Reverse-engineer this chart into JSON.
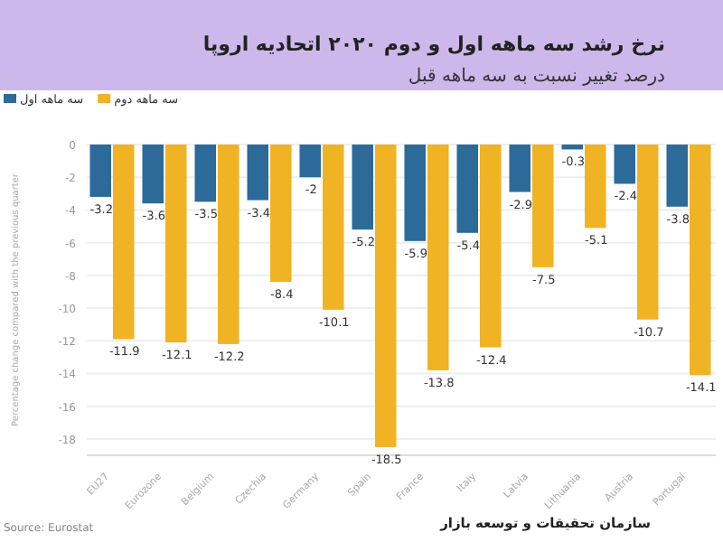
{
  "chart_data": {
    "type": "bar",
    "title": "نرخ رشد سه ماهه اول و دوم ۲۰۲۰ اتحادیه اروپا",
    "subtitle": "درصد تغییر نسبت به سه ماهه قبل",
    "ylabel": "Percentage change compared with the previous quarter",
    "categories": [
      "EU27",
      "Eurozone",
      "Belgium",
      "Czechia",
      "Germany",
      "Spain",
      "France",
      "Italy",
      "Latvia",
      "Lithuania",
      "Austria",
      "Portugal"
    ],
    "series": [
      {
        "name": "سه ماهه اول",
        "color": "#2b6a99",
        "values": [
          -3.2,
          -3.6,
          -3.5,
          -3.4,
          -2,
          -5.2,
          -5.9,
          -5.4,
          -2.9,
          -0.3,
          -2.4,
          -3.8
        ]
      },
      {
        "name": "سه ماهه دوم",
        "color": "#f0b323",
        "values": [
          -11.9,
          -12.1,
          -12.2,
          -8.4,
          -10.1,
          -18.5,
          -13.8,
          -12.4,
          -7.5,
          -5.1,
          -10.7,
          -14.1
        ]
      }
    ],
    "ylim": [
      -19,
      0
    ],
    "yticks": [
      0,
      -2,
      -4,
      -6,
      -8,
      -10,
      -12,
      -14,
      -16,
      -18
    ],
    "grid": "y",
    "legend": "top left",
    "data_labels": true,
    "annotations": [
      "Source: Eurostat",
      "سازمان تحقیقات و توسعه بازار"
    ]
  }
}
